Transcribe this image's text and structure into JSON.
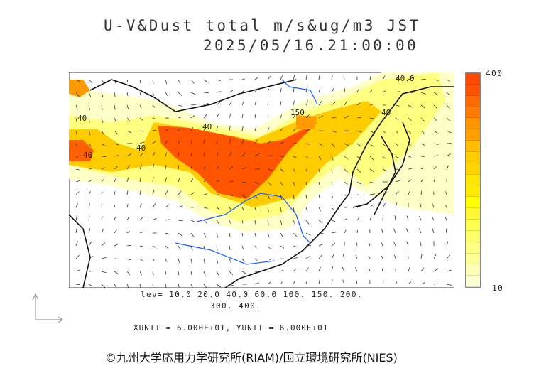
{
  "header": {
    "title": "U-V&Dust total m/s&ug/m3 JST",
    "datetime": "2025/05/16.21:00:00"
  },
  "colorbar": {
    "max_label": "400",
    "min_label": "10",
    "colors": [
      "#ff4800",
      "#ff5200",
      "#ff6a00",
      "#ff7c00",
      "#ff9600",
      "#ffa000",
      "#ffbc00",
      "#ffcc00",
      "#ffd400",
      "#ffe600",
      "#ffea00",
      "#ffff00",
      "#fff830",
      "#ffff50",
      "#ffff68",
      "#ffff80",
      "#ffff98",
      "#ffffb8",
      "#ffffd4"
    ]
  },
  "map": {
    "contour_labels": [
      "40.0",
      "150",
      "40",
      "40",
      "40",
      "40",
      "40"
    ],
    "colors": {
      "coast": "#111111",
      "river": "#1e64ff",
      "heavy": "#ff5500",
      "mid": "#ffcc00",
      "light": "#ffff80",
      "faint": "#ffffc8"
    }
  },
  "footer": {
    "levels_line1": "lev= 10.0 20.0 40.0 60.0 100. 150. 200.",
    "levels_line2": "300. 400.",
    "units": "XUNIT = 6.000E+01, YUNIT = 6.000E+01",
    "copyright": "©九州大学応用力学研究所(RIAM)/国立環境研究所(NIES)"
  }
}
